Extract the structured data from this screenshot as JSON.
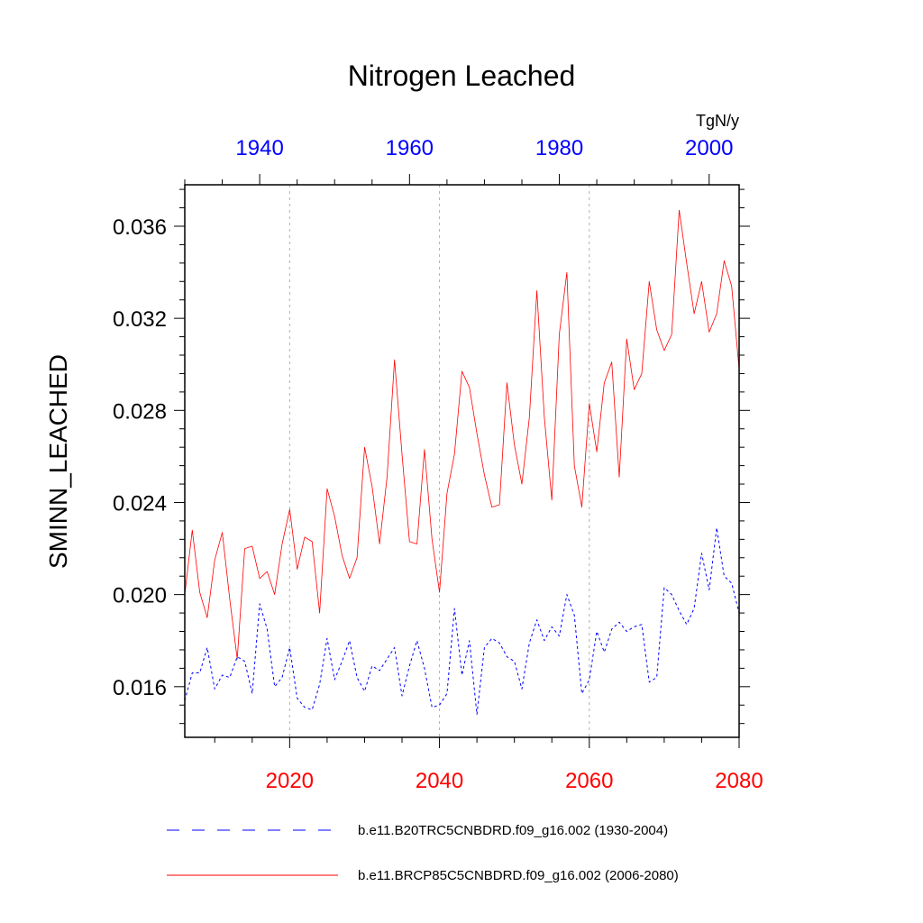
{
  "chart_data": {
    "type": "line",
    "title": "Nitrogen Leached",
    "ylabel": "SMINN_LEACHED",
    "units": "TgN/y",
    "ylim": [
      0.0138,
      0.0378
    ],
    "yticks": [
      "0.016",
      "0.020",
      "0.024",
      "0.028",
      "0.032",
      "0.036"
    ],
    "bottom_axis": {
      "range": [
        2006,
        2080
      ],
      "ticks": [
        "2020",
        "2040",
        "2060",
        "2080"
      ],
      "color": "#ff0000"
    },
    "top_axis": {
      "range": [
        1930,
        2004
      ],
      "ticks": [
        "1940",
        "1960",
        "1980",
        "2000"
      ],
      "color": "#0000ff"
    },
    "grid": "dotted vertical at 2020, 2040, 2060",
    "series": [
      {
        "name": "b.e11.B20TRC5CNBDRD.f09_g16.002 (1930-2004)",
        "color": "#0000ff",
        "style": "dashed",
        "x_start": 1930,
        "values": [
          0.0154,
          0.0166,
          0.0166,
          0.0177,
          0.0159,
          0.0165,
          0.0164,
          0.0173,
          0.0171,
          0.0157,
          0.0196,
          0.0185,
          0.016,
          0.0164,
          0.0177,
          0.0155,
          0.0151,
          0.015,
          0.0161,
          0.0181,
          0.0163,
          0.0171,
          0.018,
          0.0164,
          0.0158,
          0.0169,
          0.0167,
          0.0172,
          0.0177,
          0.0156,
          0.0169,
          0.018,
          0.0168,
          0.0151,
          0.0152,
          0.0157,
          0.0194,
          0.0165,
          0.018,
          0.0148,
          0.0177,
          0.0181,
          0.0179,
          0.0173,
          0.0171,
          0.0159,
          0.0179,
          0.0189,
          0.018,
          0.0186,
          0.0182,
          0.02,
          0.0191,
          0.0157,
          0.0163,
          0.0184,
          0.0175,
          0.0185,
          0.0188,
          0.0184,
          0.0186,
          0.0187,
          0.0162,
          0.0164,
          0.0203,
          0.02,
          0.0193,
          0.0187,
          0.0194,
          0.0218,
          0.0202,
          0.0229,
          0.0208,
          0.0205,
          0.0192
        ]
      },
      {
        "name": "b.e11.BRCP85C5CNBDRD.f09_g16.002 (2006-2080)",
        "color": "#ff0000",
        "style": "solid",
        "x_start": 2006,
        "values": [
          0.02,
          0.0228,
          0.0201,
          0.019,
          0.0215,
          0.0227,
          0.0198,
          0.0172,
          0.022,
          0.0221,
          0.0207,
          0.021,
          0.02,
          0.0222,
          0.0237,
          0.0211,
          0.0225,
          0.0223,
          0.0192,
          0.0246,
          0.0234,
          0.0217,
          0.0207,
          0.0216,
          0.0264,
          0.0247,
          0.0222,
          0.0251,
          0.0302,
          0.0261,
          0.0223,
          0.0222,
          0.0263,
          0.0224,
          0.0201,
          0.0244,
          0.0261,
          0.0297,
          0.029,
          0.027,
          0.0252,
          0.0238,
          0.0239,
          0.0292,
          0.0265,
          0.0248,
          0.0277,
          0.0332,
          0.0277,
          0.0241,
          0.0313,
          0.034,
          0.0256,
          0.0238,
          0.0283,
          0.0262,
          0.0292,
          0.0301,
          0.0251,
          0.0311,
          0.0289,
          0.0296,
          0.0336,
          0.0315,
          0.0306,
          0.0313,
          0.0367,
          0.0344,
          0.0322,
          0.0336,
          0.0314,
          0.0322,
          0.0345,
          0.0334,
          0.0298
        ]
      }
    ],
    "legend": "bottom"
  }
}
